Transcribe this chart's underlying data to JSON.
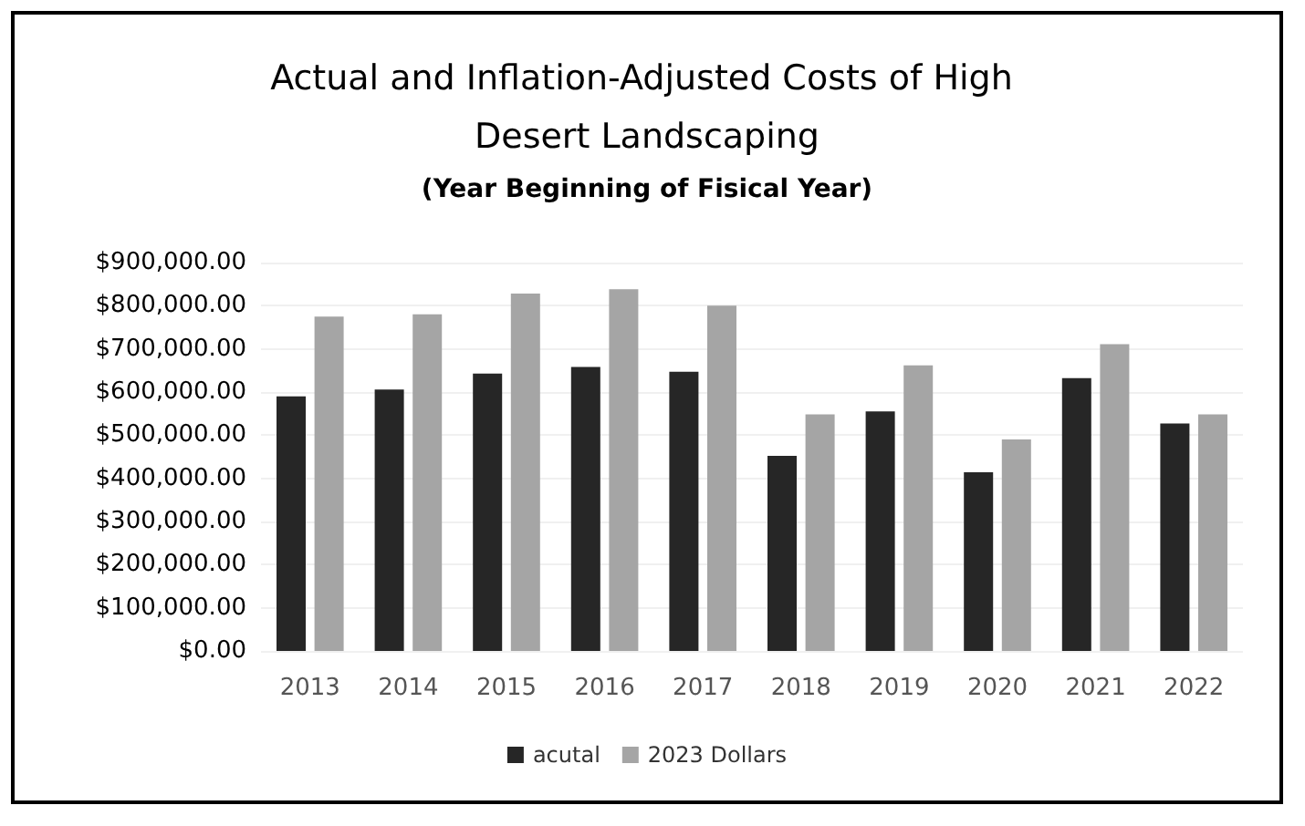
{
  "chart_data": {
    "type": "bar",
    "title": "Actual and Inflation-Adjusted Costs of High Desert Landscaping",
    "subtitle": "(Year Beginning of Fisical Year)",
    "categories": [
      "2013",
      "2014",
      "2015",
      "2016",
      "2017",
      "2018",
      "2019",
      "2020",
      "2021",
      "2022"
    ],
    "series": [
      {
        "name": "acutal",
        "color": "#262626",
        "values": [
          590000,
          606000,
          643000,
          658000,
          647000,
          452000,
          555000,
          414000,
          632000,
          527000
        ]
      },
      {
        "name": "2023 Dollars",
        "color": "#a5a5a5",
        "values": [
          775000,
          780000,
          828000,
          838000,
          800000,
          548000,
          662000,
          490000,
          711000,
          548000
        ]
      }
    ],
    "ylim": [
      0,
      900000
    ],
    "yticks": [
      {
        "value": 0,
        "label": "$0.00"
      },
      {
        "value": 100000,
        "label": "$100,000.00"
      },
      {
        "value": 200000,
        "label": "$200,000.00"
      },
      {
        "value": 300000,
        "label": "$300,000.00"
      },
      {
        "value": 400000,
        "label": "$400,000.00"
      },
      {
        "value": 500000,
        "label": "$500,000.00"
      },
      {
        "value": 600000,
        "label": "$600,000.00"
      },
      {
        "value": 700000,
        "label": "$700,000.00"
      },
      {
        "value": 800000,
        "label": "$800,000.00"
      },
      {
        "value": 900000,
        "label": "$900,000.00"
      }
    ],
    "grid": "y",
    "legend": "bottom"
  }
}
